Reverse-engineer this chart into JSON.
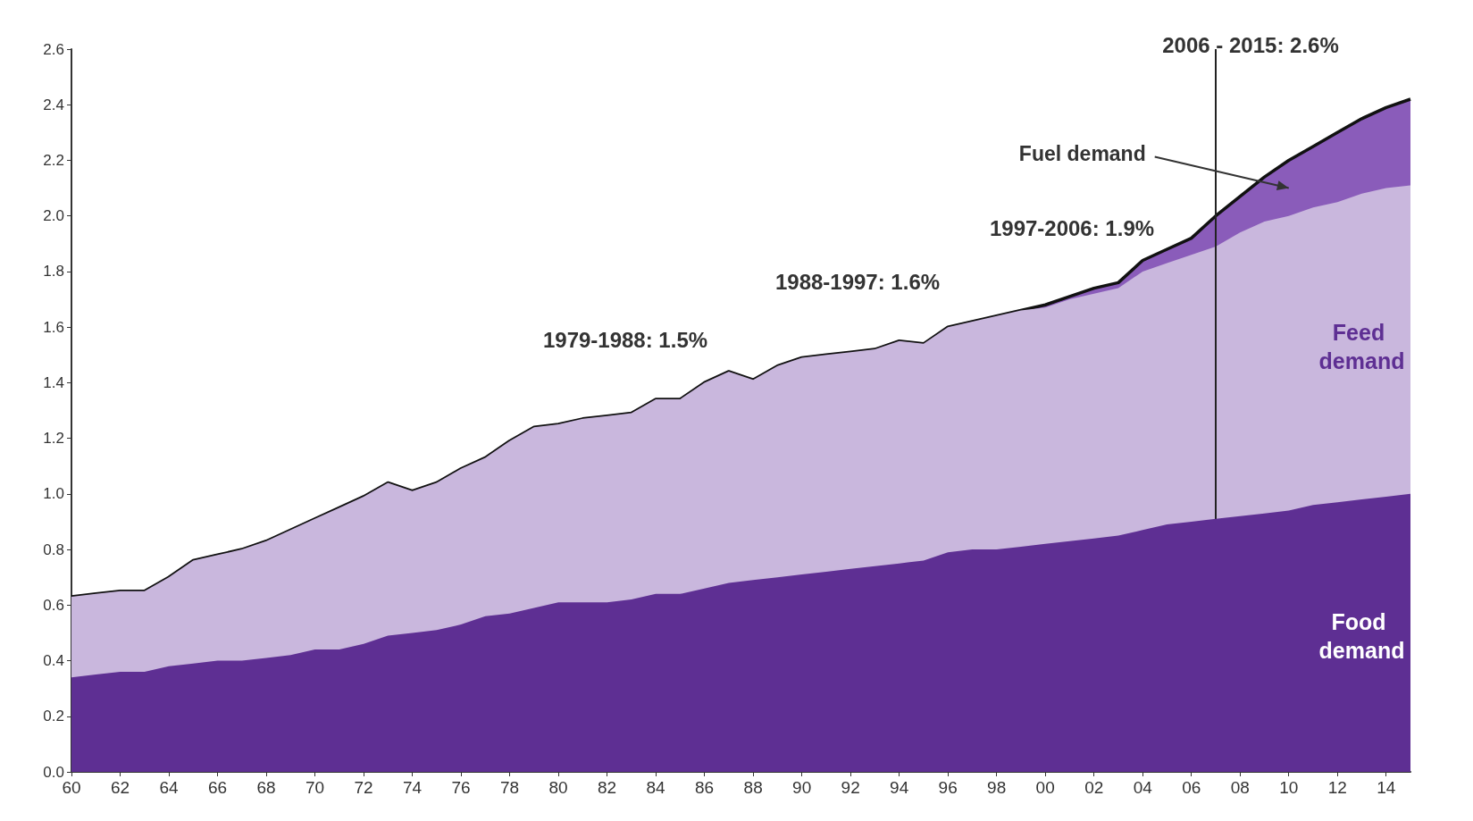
{
  "chart_data": {
    "type": "area",
    "stacked": true,
    "legend": false,
    "grid": false,
    "x": [
      1960,
      1961,
      1962,
      1963,
      1964,
      1965,
      1966,
      1967,
      1968,
      1969,
      1970,
      1971,
      1972,
      1973,
      1974,
      1975,
      1976,
      1977,
      1978,
      1979,
      1980,
      1981,
      1982,
      1983,
      1984,
      1985,
      1986,
      1987,
      1988,
      1989,
      1990,
      1991,
      1992,
      1993,
      1994,
      1995,
      1996,
      1997,
      1998,
      1999,
      2000,
      2001,
      2002,
      2003,
      2004,
      2005,
      2006,
      2007,
      2008,
      2009,
      2010,
      2011,
      2012,
      2013,
      2014,
      2015
    ],
    "xlim": [
      1960,
      2015
    ],
    "xticks": [
      {
        "value": 1960,
        "label": "60"
      },
      {
        "value": 1962,
        "label": "62"
      },
      {
        "value": 1964,
        "label": "64"
      },
      {
        "value": 1966,
        "label": "66"
      },
      {
        "value": 1968,
        "label": "68"
      },
      {
        "value": 1970,
        "label": "70"
      },
      {
        "value": 1972,
        "label": "72"
      },
      {
        "value": 1974,
        "label": "74"
      },
      {
        "value": 1976,
        "label": "76"
      },
      {
        "value": 1978,
        "label": "78"
      },
      {
        "value": 1980,
        "label": "80"
      },
      {
        "value": 1982,
        "label": "82"
      },
      {
        "value": 1984,
        "label": "84"
      },
      {
        "value": 1986,
        "label": "86"
      },
      {
        "value": 1988,
        "label": "88"
      },
      {
        "value": 1990,
        "label": "90"
      },
      {
        "value": 1992,
        "label": "92"
      },
      {
        "value": 1994,
        "label": "94"
      },
      {
        "value": 1996,
        "label": "96"
      },
      {
        "value": 1998,
        "label": "98"
      },
      {
        "value": 2000,
        "label": "00"
      },
      {
        "value": 2002,
        "label": "02"
      },
      {
        "value": 2004,
        "label": "04"
      },
      {
        "value": 2006,
        "label": "06"
      },
      {
        "value": 2008,
        "label": "08"
      },
      {
        "value": 2010,
        "label": "10"
      },
      {
        "value": 2012,
        "label": "12"
      },
      {
        "value": 2014,
        "label": "14"
      }
    ],
    "ylim": [
      0,
      2.6
    ],
    "yticks": [
      {
        "value": 0,
        "label": "0.0"
      },
      {
        "value": 0.2,
        "label": "0.2"
      },
      {
        "value": 0.4,
        "label": "0.4"
      },
      {
        "value": 0.6,
        "label": "0.6"
      },
      {
        "value": 0.8,
        "label": "0.8"
      },
      {
        "value": 1,
        "label": "1.0"
      },
      {
        "value": 1.2,
        "label": "1.2"
      },
      {
        "value": 1.4,
        "label": "1.4"
      },
      {
        "value": 1.6,
        "label": "1.6"
      },
      {
        "value": 1.8,
        "label": "1.8"
      },
      {
        "value": 2,
        "label": "2.0"
      },
      {
        "value": 2.2,
        "label": "2.2"
      },
      {
        "value": 2.4,
        "label": "2.4"
      },
      {
        "value": 2.6,
        "label": "2.6"
      }
    ],
    "series": [
      {
        "name": "Food demand",
        "color": "#5e2f93",
        "values": [
          0.34,
          0.35,
          0.36,
          0.36,
          0.38,
          0.39,
          0.4,
          0.4,
          0.41,
          0.42,
          0.44,
          0.44,
          0.46,
          0.49,
          0.5,
          0.51,
          0.53,
          0.56,
          0.57,
          0.59,
          0.61,
          0.61,
          0.61,
          0.62,
          0.64,
          0.64,
          0.66,
          0.68,
          0.69,
          0.7,
          0.71,
          0.72,
          0.73,
          0.74,
          0.75,
          0.76,
          0.79,
          0.8,
          0.8,
          0.81,
          0.82,
          0.83,
          0.84,
          0.85,
          0.87,
          0.89,
          0.9,
          0.91,
          0.92,
          0.93,
          0.94,
          0.96,
          0.97,
          0.98,
          0.99,
          1.0
        ]
      },
      {
        "name": "Feed demand",
        "color": "#c9b7dd",
        "values": [
          0.29,
          0.29,
          0.29,
          0.29,
          0.32,
          0.37,
          0.38,
          0.4,
          0.42,
          0.45,
          0.47,
          0.51,
          0.53,
          0.55,
          0.51,
          0.53,
          0.56,
          0.57,
          0.62,
          0.65,
          0.64,
          0.66,
          0.67,
          0.67,
          0.7,
          0.7,
          0.74,
          0.76,
          0.72,
          0.76,
          0.78,
          0.78,
          0.78,
          0.78,
          0.8,
          0.78,
          0.81,
          0.82,
          0.84,
          0.85,
          0.85,
          0.87,
          0.88,
          0.89,
          0.93,
          0.94,
          0.96,
          0.98,
          1.02,
          1.05,
          1.06,
          1.07,
          1.08,
          1.1,
          1.11,
          1.11
        ]
      },
      {
        "name": "Fuel demand",
        "color": "#8a5cba",
        "values": [
          0,
          0,
          0,
          0,
          0,
          0,
          0,
          0,
          0,
          0,
          0,
          0,
          0,
          0,
          0,
          0,
          0,
          0,
          0,
          0,
          0,
          0,
          0,
          0,
          0,
          0,
          0,
          0,
          0,
          0,
          0,
          0,
          0,
          0,
          0,
          0,
          0,
          0,
          0,
          0,
          0.01,
          0.01,
          0.02,
          0.02,
          0.04,
          0.05,
          0.06,
          0.11,
          0.13,
          0.16,
          0.2,
          0.22,
          0.25,
          0.27,
          0.29,
          0.31
        ]
      }
    ],
    "ref_lines": [
      {
        "axis": "x",
        "value": 2007,
        "color": "#222222"
      }
    ],
    "annotations": [
      "2006 - 2015: 2.6%",
      "1979-1988: 1.5%",
      "1988-1997: 1.6%",
      "1997-2006: 1.9%"
    ]
  }
}
